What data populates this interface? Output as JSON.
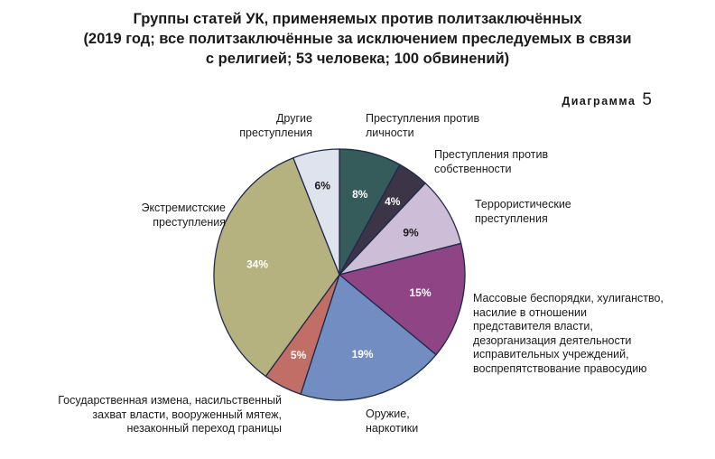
{
  "chart_data": {
    "type": "pie",
    "title": [
      "Группы статей УК, применяемых против политзаключённых",
      "(2019 год; все политзаключённые за исключением преследуемых в связи",
      "с религией; 53 человека; 100 обвинений)"
    ],
    "diagram_label": {
      "word": "Диаграмма",
      "number": "5"
    },
    "slices": [
      {
        "label": "Преступления против личности",
        "value": 8,
        "value_label": "8%",
        "color": "#355b5b",
        "label_color": "#ffffff"
      },
      {
        "label": "Преступления против собственности",
        "value": 4,
        "value_label": "4%",
        "color": "#3b3547",
        "label_color": "#ffffff"
      },
      {
        "label": "Террористические преступления",
        "value": 9,
        "value_label": "9%",
        "color": "#cdbdd7",
        "label_color": "#1a1a1a"
      },
      {
        "label": "Массовые беспорядки, хулиганство, насилие в отношении представителя власти, дезорганизация деятельности исправительных учреждений, воспрепятствование правосудию",
        "value": 15,
        "value_label": "15%",
        "color": "#8f4585",
        "label_color": "#ffffff"
      },
      {
        "label": "Оружие, наркотики",
        "value": 19,
        "value_label": "19%",
        "color": "#718dc1",
        "label_color": "#ffffff"
      },
      {
        "label": "Государственная измена, насильственный захват власти, вооруженный мятеж, незаконный переход границы",
        "value": 5,
        "value_label": "5%",
        "color": "#c06e66",
        "label_color": "#ffffff"
      },
      {
        "label": "Экстремистские преступления",
        "value": 34,
        "value_label": "34%",
        "color": "#b6b280",
        "label_color": "#ffffff"
      },
      {
        "label": "Другие преступления",
        "value": 6,
        "value_label": "6%",
        "color": "#dee3ee",
        "label_color": "#1a1a1a"
      }
    ]
  }
}
